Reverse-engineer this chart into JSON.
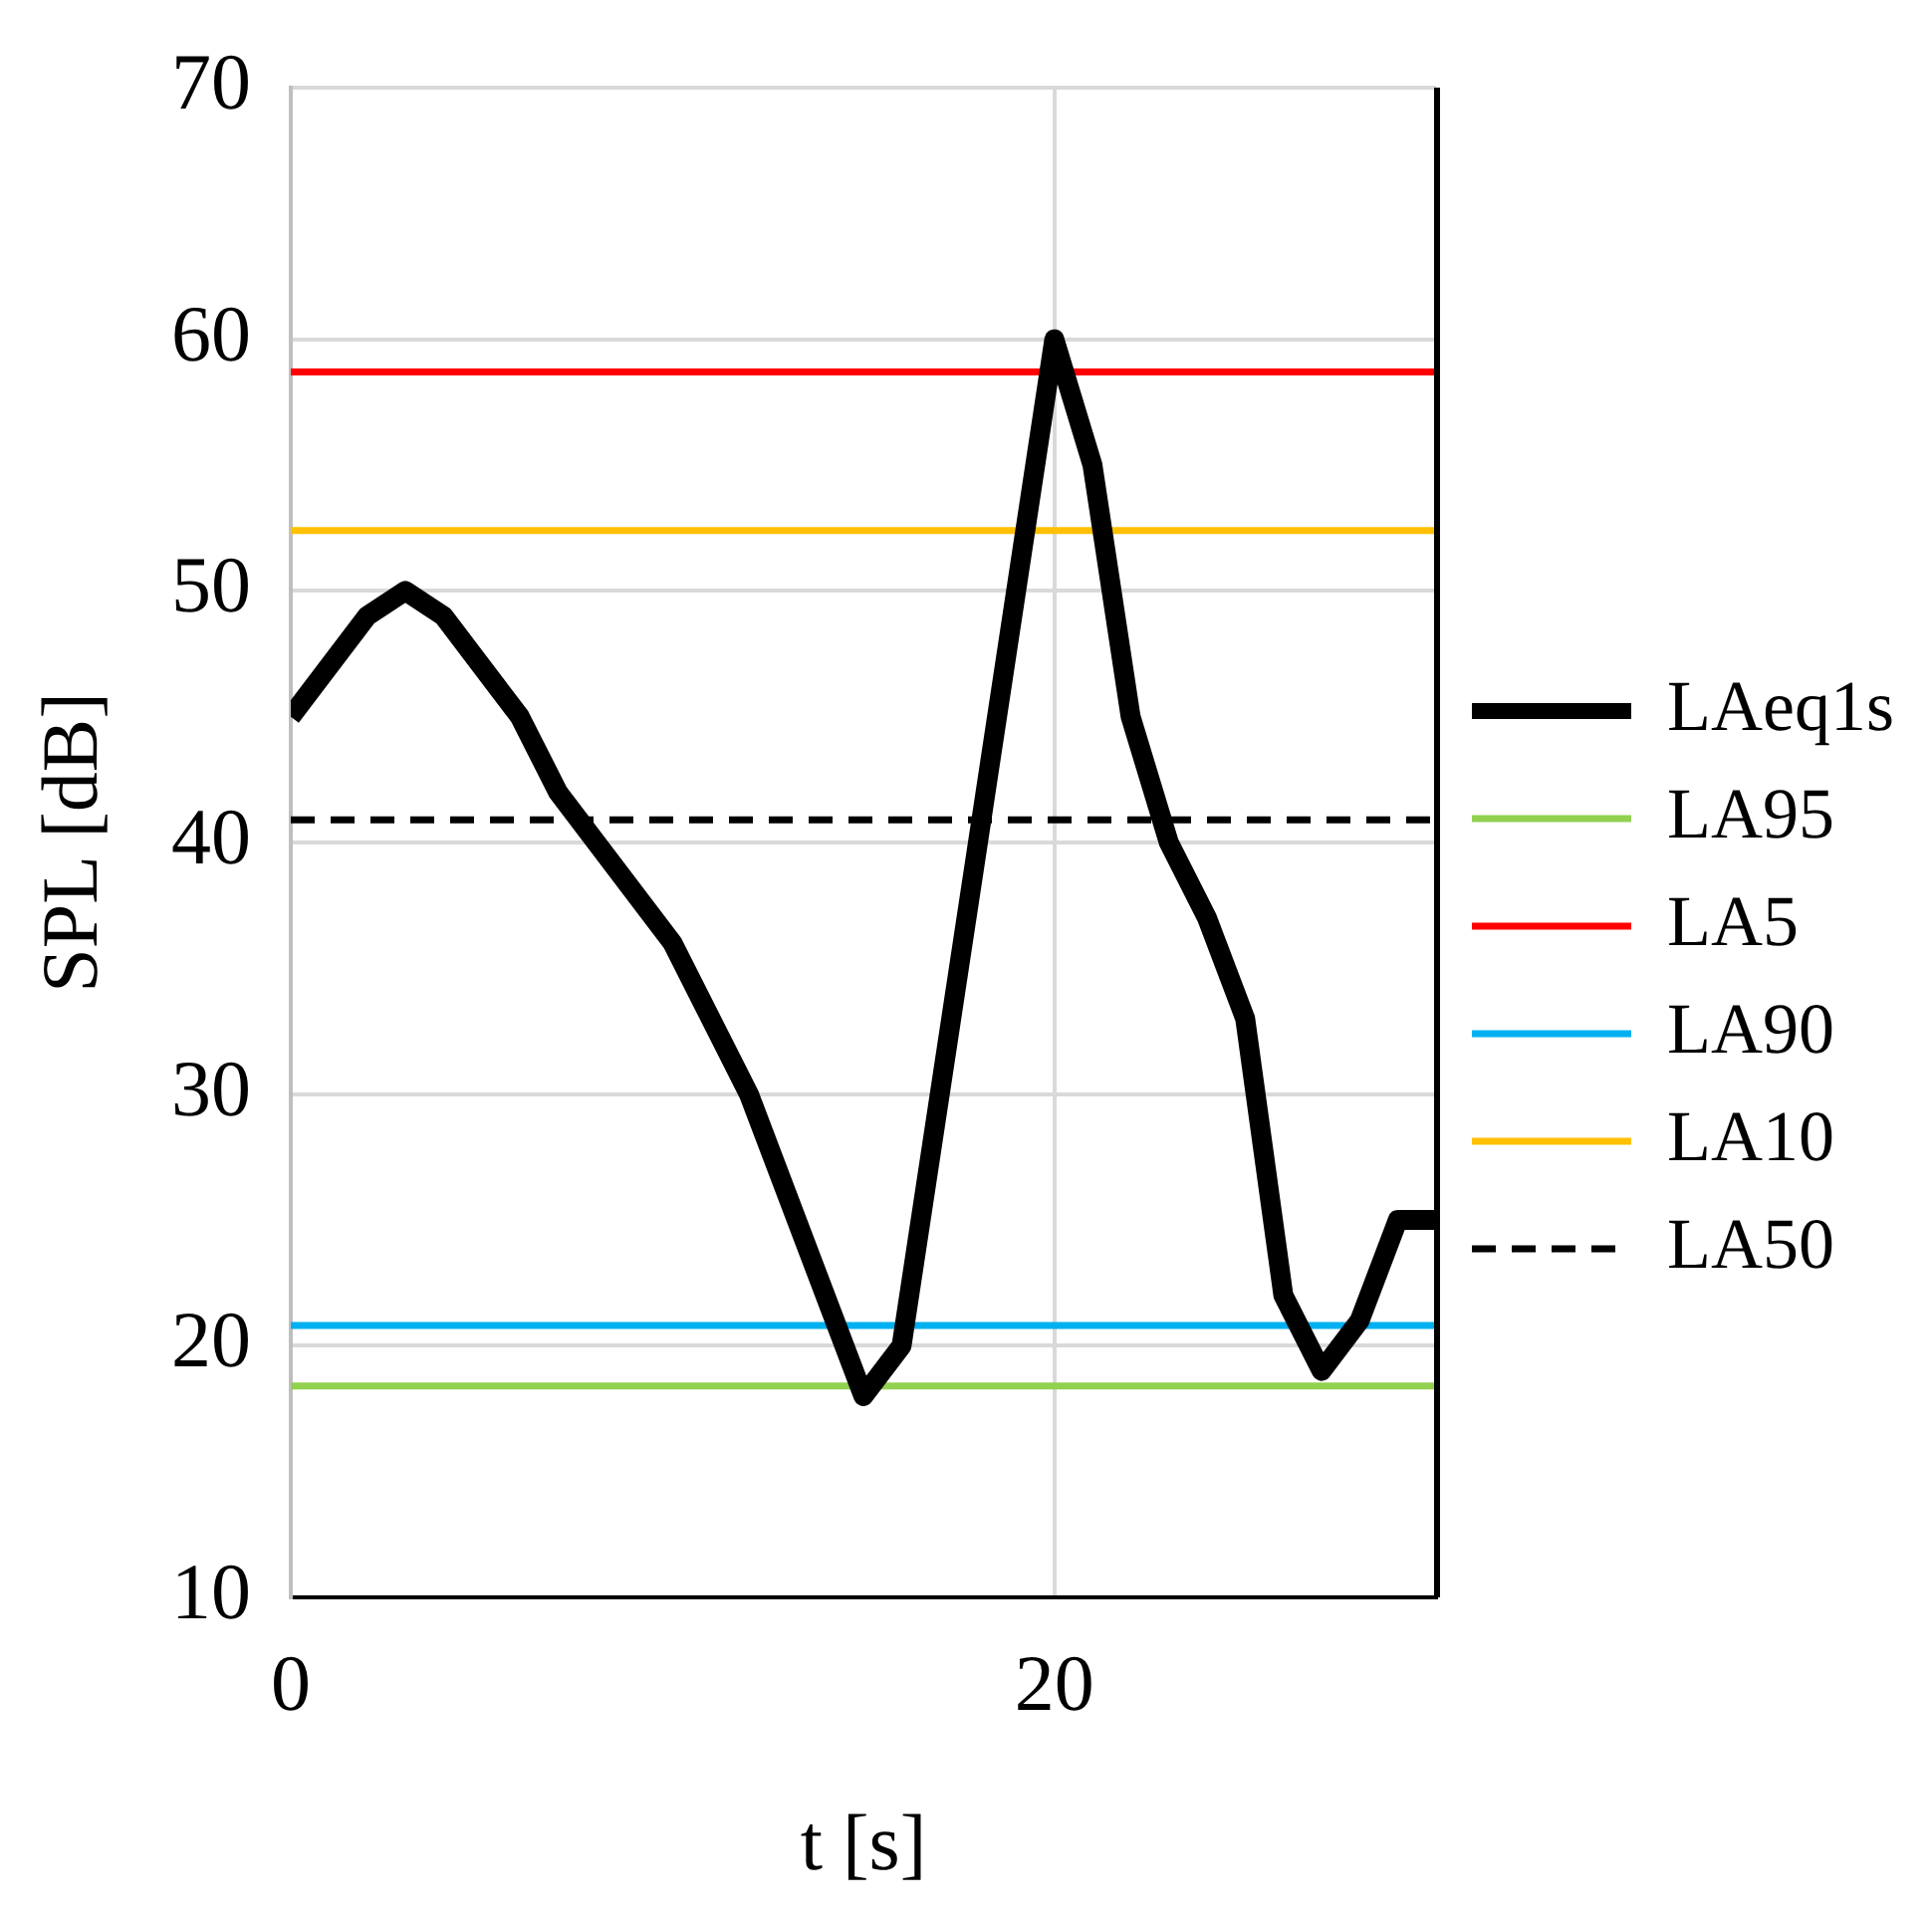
{
  "chart_data": {
    "type": "line",
    "xlabel": "t [s]",
    "ylabel": "SPL [dB]",
    "xlim": [
      0,
      30
    ],
    "xticks": [
      0,
      20
    ],
    "ylim": [
      10,
      70
    ],
    "yticks": [
      10,
      20,
      30,
      40,
      50,
      60,
      70
    ],
    "grid": true,
    "legend": "right",
    "marker": "none",
    "series": [
      {
        "name": "LAeq1s",
        "color": "#000000",
        "x": [
          0,
          2,
          3,
          4,
          6,
          7,
          10,
          12,
          15,
          16,
          20,
          21,
          22,
          23,
          24,
          25,
          26,
          27,
          28,
          29,
          30
        ],
        "values": [
          45,
          49,
          50,
          49,
          45,
          42,
          36,
          30,
          18,
          20,
          60,
          55,
          45,
          40,
          37,
          33,
          22,
          19,
          21,
          25,
          25
        ]
      },
      {
        "name": "LA95",
        "color": "#92d050",
        "x": [
          0,
          30
        ],
        "values": [
          18.4,
          18.4
        ]
      },
      {
        "name": "LA5",
        "color": "#ff0000",
        "x": [
          0,
          30
        ],
        "values": [
          58.7,
          58.7
        ]
      },
      {
        "name": "LA90",
        "color": "#00b0f0",
        "x": [
          0,
          30
        ],
        "values": [
          20.8,
          20.8
        ]
      },
      {
        "name": "LA10",
        "color": "#ffc000",
        "x": [
          0,
          30
        ],
        "values": [
          52.4,
          52.4
        ]
      },
      {
        "name": "LA50",
        "color": "#000000",
        "x": [
          0,
          30
        ],
        "values": [
          40.9,
          40.9
        ],
        "line_style": "dashed"
      }
    ]
  }
}
